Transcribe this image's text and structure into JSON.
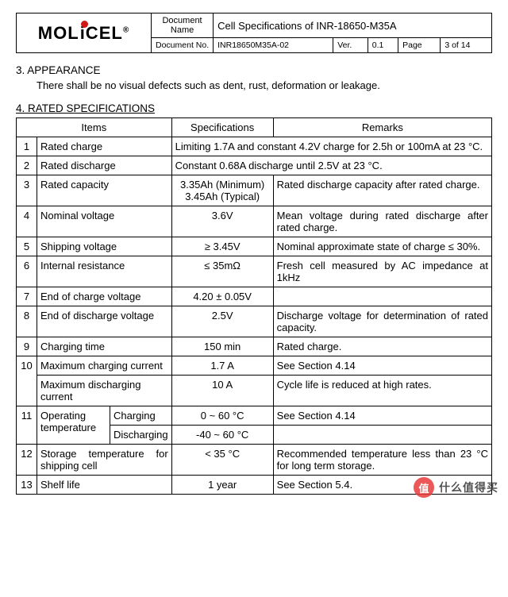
{
  "header": {
    "logo_text": "MOLiCEL",
    "doc_name_label": "Document Name",
    "doc_name_value": "Cell Specifications of INR-18650-M35A",
    "doc_no_label": "Document No.",
    "doc_no_value": "INR18650M35A-02",
    "ver_label": "Ver.",
    "ver_value": "0.1",
    "page_label": "Page",
    "page_value": "3 of 14"
  },
  "sections": {
    "appearance": {
      "title": "3.   APPEARANCE",
      "body": "There shall be no visual defects such as dent, rust, deformation or leakage."
    },
    "rated": {
      "title": "4.   RATED SPECIFICATIONS"
    }
  },
  "table_head": {
    "items": "Items",
    "spec": "Specifications",
    "remarks": "Remarks"
  },
  "rows": [
    {
      "n": "1",
      "item": "Rated charge",
      "spec_full": "Limiting 1.7A and constant 4.2V charge for 2.5h or 100mA at 23 °C."
    },
    {
      "n": "2",
      "item": "Rated discharge",
      "spec_full": "Constant 0.68A discharge until 2.5V at 23 °C."
    },
    {
      "n": "3",
      "item": "Rated capacity",
      "spec": "3.35Ah (Minimum)\n3.45Ah (Typical)",
      "rem": "Rated discharge capacity after rated charge."
    },
    {
      "n": "4",
      "item": "Nominal voltage",
      "spec": "3.6V",
      "rem": "Mean voltage during rated discharge after rated charge."
    },
    {
      "n": "5",
      "item": "Shipping voltage",
      "spec": "≥ 3.45V",
      "rem": "Nominal approximate state of charge ≤ 30%."
    },
    {
      "n": "6",
      "item": "Internal resistance",
      "spec": "≤ 35mΩ",
      "rem": "Fresh cell measured by AC impedance at 1kHz"
    },
    {
      "n": "7",
      "item": "End of charge voltage",
      "spec": "4.20 ± 0.05V",
      "rem": ""
    },
    {
      "n": "8",
      "item": "End of discharge voltage",
      "spec": "2.5V",
      "rem": "Discharge voltage for determination of rated capacity."
    },
    {
      "n": "9",
      "item": "Charging time",
      "spec": "150 min",
      "rem": "Rated charge."
    },
    {
      "n": "10",
      "item": "Maximum charging current",
      "spec": "1.7 A",
      "rem": "See Section 4.14"
    },
    {
      "n": "",
      "item": "Maximum discharging current",
      "spec": "10 A",
      "rem": "Cycle life is reduced at high rates."
    },
    {
      "n": "11",
      "item_l": "Operating temperature",
      "item_r_top": "Charging",
      "item_r_bot": "Discharging",
      "spec_top": "0 ~ 60 °C",
      "rem_top": "See Section 4.14",
      "spec_bot": "-40 ~ 60 °C",
      "rem_bot": ""
    },
    {
      "n": "12",
      "item": "Storage temperature for shipping cell",
      "spec": "< 35 °C",
      "rem": "Recommended temperature less than 23 °C for long term storage."
    },
    {
      "n": "13",
      "item": "Shelf life",
      "spec": "1 year",
      "rem": "See Section 5.4."
    }
  ],
  "watermark": {
    "badge": "值",
    "text": "什么值得买"
  }
}
